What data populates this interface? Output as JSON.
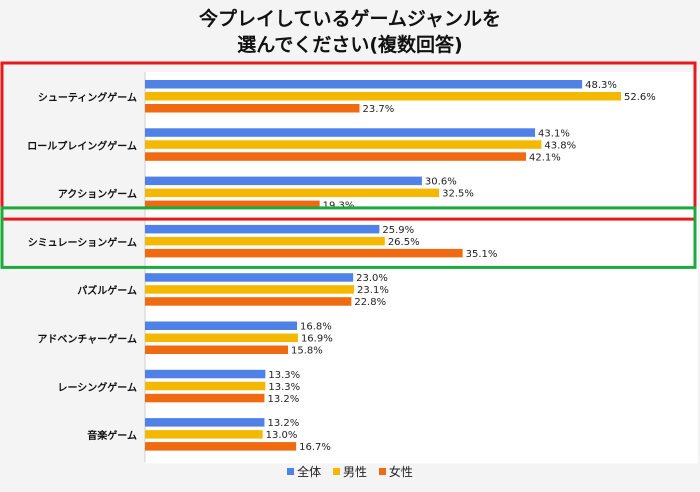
{
  "chart_data": {
    "type": "bar",
    "orientation": "horizontal",
    "title": [
      "今プレイしているゲームジャンルを",
      "選んでください(複数回答)"
    ],
    "categories": [
      "シューティングゲーム",
      "ロールプレイングゲーム",
      "アクションゲーム",
      "シミュレーションゲーム",
      "パズルゲーム",
      "アドベンチャーゲーム",
      "レーシングゲーム",
      "音楽ゲーム"
    ],
    "series": [
      {
        "name": "全体",
        "color": "#4f81e6",
        "values": [
          48.3,
          43.1,
          30.6,
          25.9,
          23.0,
          16.8,
          13.3,
          13.2
        ]
      },
      {
        "name": "男性",
        "color": "#f5b800",
        "values": [
          52.6,
          43.8,
          32.5,
          26.5,
          23.1,
          16.9,
          13.3,
          13.0
        ]
      },
      {
        "name": "女性",
        "color": "#f06a12",
        "values": [
          23.7,
          42.1,
          19.3,
          35.1,
          22.8,
          15.8,
          13.2,
          16.7
        ]
      }
    ],
    "value_suffix": "%",
    "xlim": [
      0,
      60
    ],
    "grid": false,
    "legend_position": "bottom",
    "highlights": [
      {
        "categories": [
          "シューティングゲーム",
          "ロールプレイングゲーム",
          "アクションゲーム"
        ],
        "color": "#e8191b"
      },
      {
        "categories": [
          "シミュレーションゲーム"
        ],
        "color": "#1aab3c"
      }
    ]
  }
}
